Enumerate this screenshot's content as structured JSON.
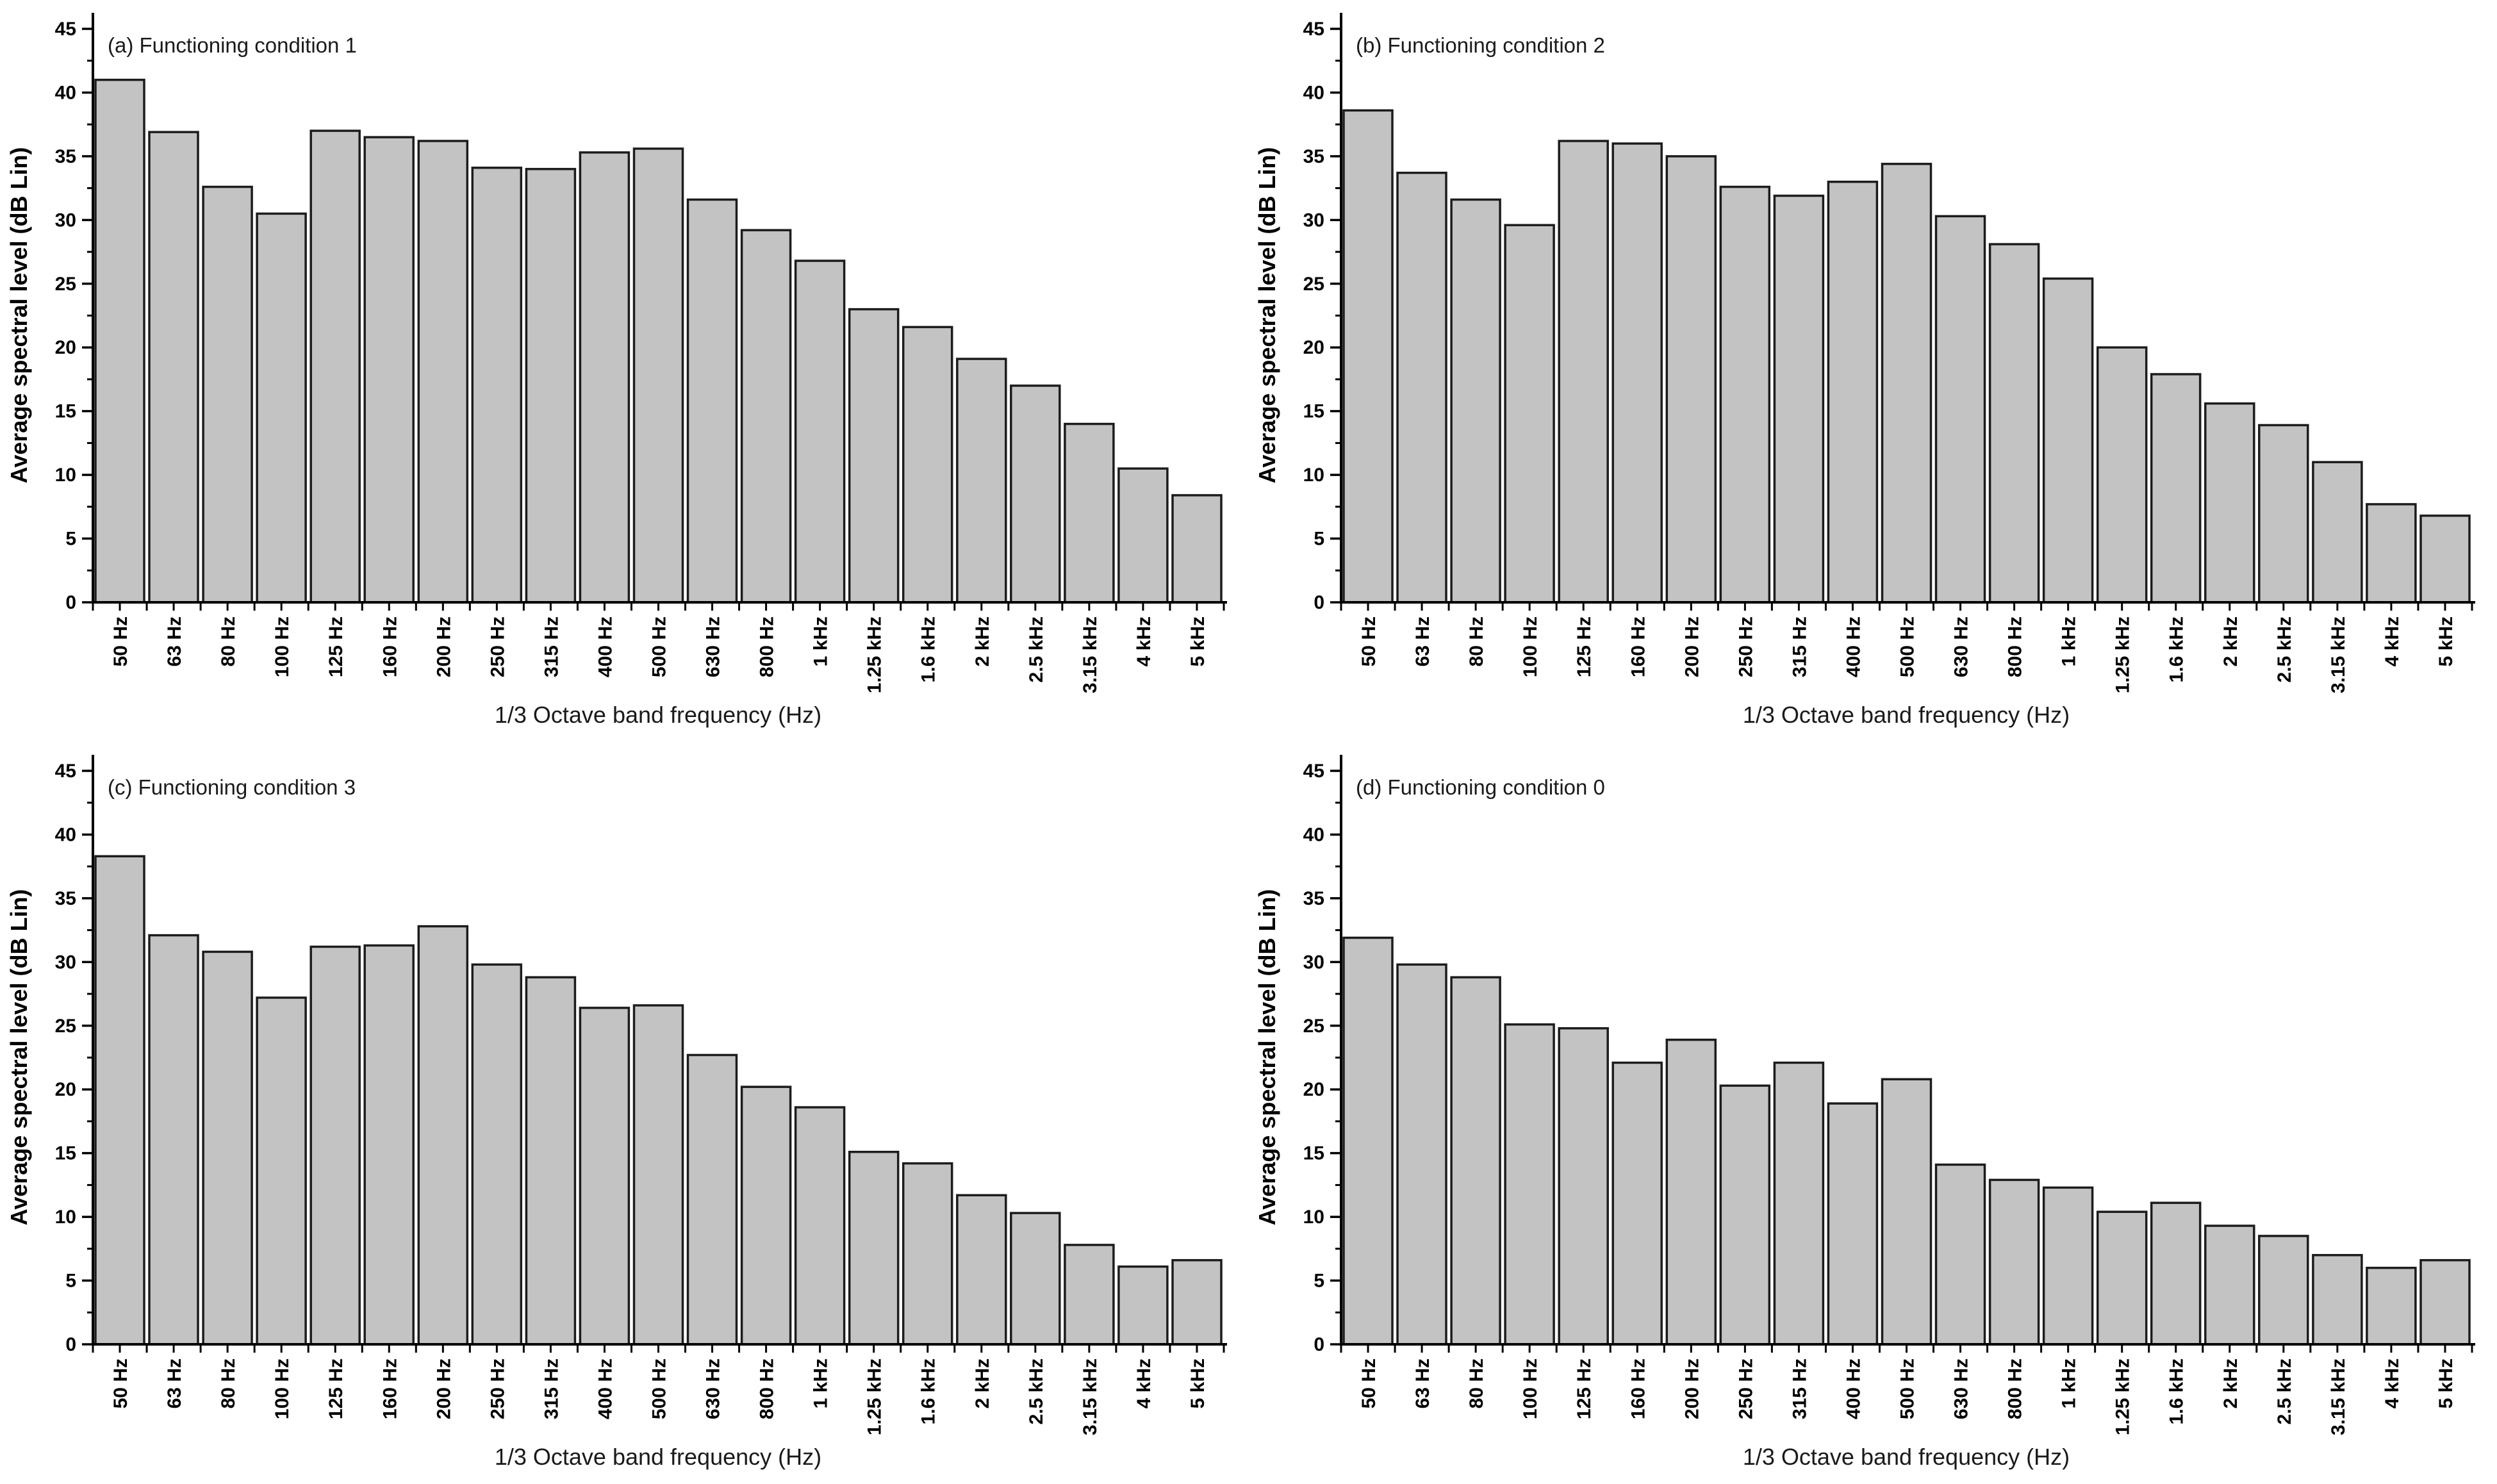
{
  "figure": {
    "background": "#ffffff",
    "bar_fill": "#c3c3c3",
    "bar_stroke": "#1c1c1c",
    "axis_color": "#000000",
    "ylabel": "Average spectral level (dB Lin)",
    "xlabel": "1/3 Octave band frequency (Hz)"
  },
  "chart_data": [
    {
      "type": "bar",
      "title": "(a) Functioning condition 1",
      "categories": [
        "50 Hz",
        "63 Hz",
        "80 Hz",
        "100 Hz",
        "125 Hz",
        "160 Hz",
        "200 Hz",
        "250 Hz",
        "315 Hz",
        "400 Hz",
        "500 Hz",
        "630 Hz",
        "800 Hz",
        "1 kHz",
        "1.25 kHz",
        "1.6 kHz",
        "2 kHz",
        "2.5 kHz",
        "3.15 kHz",
        "4 kHz",
        "5 kHz"
      ],
      "values": [
        41.0,
        36.9,
        32.6,
        30.5,
        37.0,
        36.5,
        36.2,
        34.1,
        34.0,
        35.3,
        35.6,
        31.6,
        29.2,
        26.8,
        23.0,
        21.6,
        19.1,
        17.0,
        14.0,
        10.5,
        8.4
      ],
      "xlabel": "1/3 Octave band frequency (Hz)",
      "ylabel": "Average spectral level (dB Lin)",
      "ylim": [
        0,
        45
      ],
      "ytick_step": 5,
      "yminor_step": 2.5,
      "grid": false,
      "legend": "none"
    },
    {
      "type": "bar",
      "title": "(b) Functioning condition 2",
      "categories": [
        "50 Hz",
        "63 Hz",
        "80 Hz",
        "100 Hz",
        "125 Hz",
        "160 Hz",
        "200 Hz",
        "250 Hz",
        "315 Hz",
        "400 Hz",
        "500 Hz",
        "630 Hz",
        "800 Hz",
        "1 kHz",
        "1.25 kHz",
        "1.6 kHz",
        "2 kHz",
        "2.5 kHz",
        "3.15 kHz",
        "4 kHz",
        "5 kHz"
      ],
      "values": [
        38.6,
        33.7,
        31.6,
        29.6,
        36.2,
        36.0,
        35.0,
        32.6,
        31.9,
        33.0,
        34.4,
        30.3,
        28.1,
        25.4,
        20.0,
        17.9,
        15.6,
        13.9,
        11.0,
        7.7,
        6.8
      ],
      "xlabel": "1/3 Octave band frequency (Hz)",
      "ylabel": "Average spectral level (dB Lin)",
      "ylim": [
        0,
        45
      ],
      "ytick_step": 5,
      "yminor_step": 2.5,
      "grid": false,
      "legend": "none"
    },
    {
      "type": "bar",
      "title": "(c) Functioning condition 3",
      "categories": [
        "50 Hz",
        "63 Hz",
        "80 Hz",
        "100 Hz",
        "125 Hz",
        "160 Hz",
        "200 Hz",
        "250 Hz",
        "315 Hz",
        "400 Hz",
        "500 Hz",
        "630 Hz",
        "800 Hz",
        "1 kHz",
        "1.25 kHz",
        "1.6 kHz",
        "2 kHz",
        "2.5 kHz",
        "3.15 kHz",
        "4 kHz",
        "5 kHz"
      ],
      "values": [
        38.3,
        32.1,
        30.8,
        27.2,
        31.2,
        31.3,
        32.8,
        29.8,
        28.8,
        26.4,
        26.6,
        22.7,
        20.2,
        18.6,
        15.1,
        14.2,
        11.7,
        10.3,
        7.8,
        6.1,
        6.6
      ],
      "xlabel": "1/3 Octave band frequency (Hz)",
      "ylabel": "Average spectral level (dB Lin)",
      "ylim": [
        0,
        45
      ],
      "ytick_step": 5,
      "yminor_step": 2.5,
      "grid": false,
      "legend": "none"
    },
    {
      "type": "bar",
      "title": "(d) Functioning condition 0",
      "categories": [
        "50 Hz",
        "63 Hz",
        "80 Hz",
        "100 Hz",
        "125 Hz",
        "160 Hz",
        "200 Hz",
        "250 Hz",
        "315 Hz",
        "400 Hz",
        "500 Hz",
        "630 Hz",
        "800 Hz",
        "1 kHz",
        "1.25 kHz",
        "1.6 kHz",
        "2 kHz",
        "2.5 kHz",
        "3.15 kHz",
        "4 kHz",
        "5 kHz"
      ],
      "values": [
        31.9,
        29.8,
        28.8,
        25.1,
        24.8,
        22.1,
        23.9,
        20.3,
        22.1,
        18.9,
        20.8,
        14.1,
        12.9,
        12.3,
        10.4,
        11.1,
        9.3,
        8.5,
        7.0,
        6.0,
        6.6
      ],
      "xlabel": "1/3 Octave band frequency (Hz)",
      "ylabel": "Average spectral level (dB Lin)",
      "ylim": [
        0,
        45
      ],
      "ytick_step": 5,
      "yminor_step": 2.5,
      "grid": false,
      "legend": "none"
    }
  ]
}
